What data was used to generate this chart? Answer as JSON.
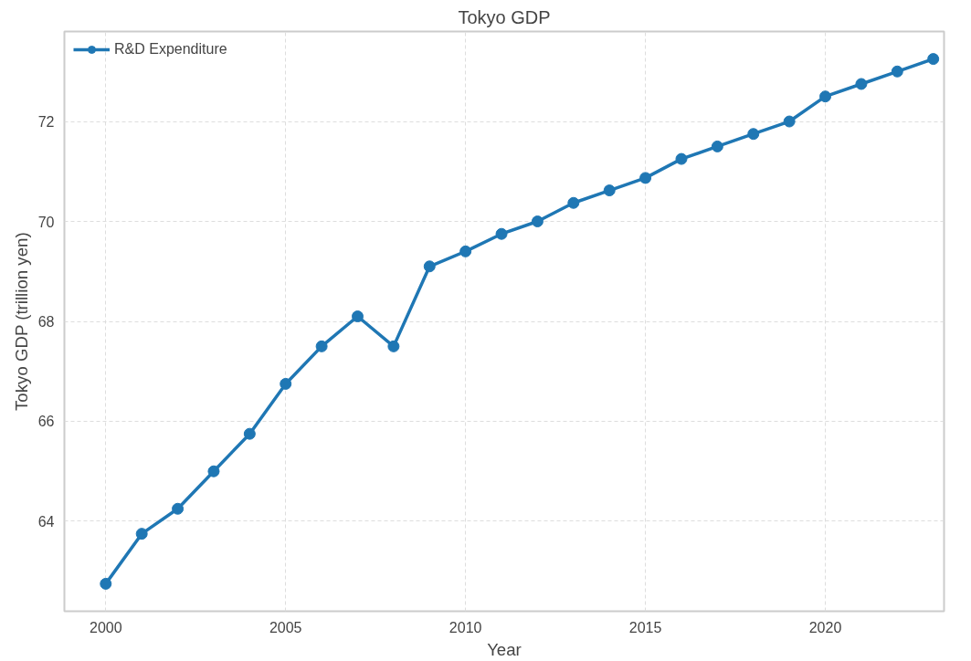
{
  "chart_data": {
    "type": "line",
    "title": "Tokyo GDP",
    "xlabel": "Year",
    "ylabel": "Tokyo GDP (trillion yen)",
    "x": [
      2000,
      2001,
      2002,
      2003,
      2004,
      2005,
      2006,
      2007,
      2008,
      2009,
      2010,
      2011,
      2012,
      2013,
      2014,
      2015,
      2016,
      2017,
      2018,
      2019,
      2020,
      2021,
      2022,
      2023
    ],
    "series": [
      {
        "name": "R&D Expenditure",
        "color": "#1f77b4",
        "values": [
          62.75,
          63.75,
          64.25,
          65.0,
          65.75,
          66.75,
          67.5,
          68.1,
          67.5,
          69.1,
          69.4,
          69.75,
          70.0,
          70.37,
          70.62,
          70.87,
          71.25,
          71.5,
          71.75,
          72.0,
          72.5,
          72.75,
          73.0,
          73.25
        ]
      }
    ],
    "xlim": [
      1998.85,
      2023.3
    ],
    "xticks": [
      2000,
      2005,
      2010,
      2015,
      2020
    ],
    "ylim": [
      62.2,
      73.8
    ],
    "yticks": [
      64,
      66,
      68,
      70,
      72
    ],
    "grid": true,
    "legend": "top left",
    "marker": "circle",
    "line_style": "solid"
  }
}
